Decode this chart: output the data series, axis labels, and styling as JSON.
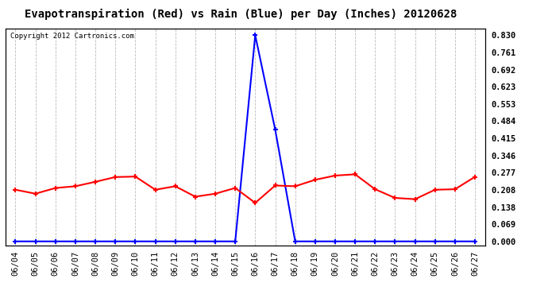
{
  "title": "Evapotranspiration (Red) vs Rain (Blue) per Day (Inches) 20120628",
  "copyright": "Copyright 2012 Cartronics.com",
  "dates": [
    "06/04",
    "06/05",
    "06/06",
    "06/07",
    "06/08",
    "06/09",
    "06/10",
    "06/11",
    "06/12",
    "06/13",
    "06/14",
    "06/15",
    "06/16",
    "06/17",
    "06/18",
    "06/19",
    "06/20",
    "06/21",
    "06/22",
    "06/23",
    "06/24",
    "06/25",
    "06/26",
    "06/27"
  ],
  "et_values": [
    0.208,
    0.192,
    0.215,
    0.222,
    0.24,
    0.259,
    0.261,
    0.208,
    0.222,
    0.18,
    0.192,
    0.215,
    0.155,
    0.225,
    0.222,
    0.248,
    0.265,
    0.27,
    0.21,
    0.175,
    0.17,
    0.208,
    0.21,
    0.26
  ],
  "rain_values": [
    0.0,
    0.0,
    0.0,
    0.0,
    0.0,
    0.0,
    0.0,
    0.0,
    0.0,
    0.0,
    0.0,
    0.0,
    0.83,
    0.45,
    0.0,
    0.0,
    0.0,
    0.0,
    0.0,
    0.0,
    0.0,
    0.0,
    0.0,
    0.0
  ],
  "et_color": "red",
  "rain_color": "blue",
  "yticks": [
    0.0,
    0.069,
    0.138,
    0.208,
    0.277,
    0.346,
    0.415,
    0.484,
    0.553,
    0.623,
    0.692,
    0.761,
    0.83
  ],
  "ymax": 0.858,
  "ymin": -0.018,
  "bg_color": "#ffffff",
  "plot_bg_color": "#ffffff",
  "grid_color": "#bbbbbb",
  "marker": "+",
  "marker_size": 5,
  "title_fontsize": 10,
  "tick_fontsize": 7.5,
  "copyright_fontsize": 6.5
}
